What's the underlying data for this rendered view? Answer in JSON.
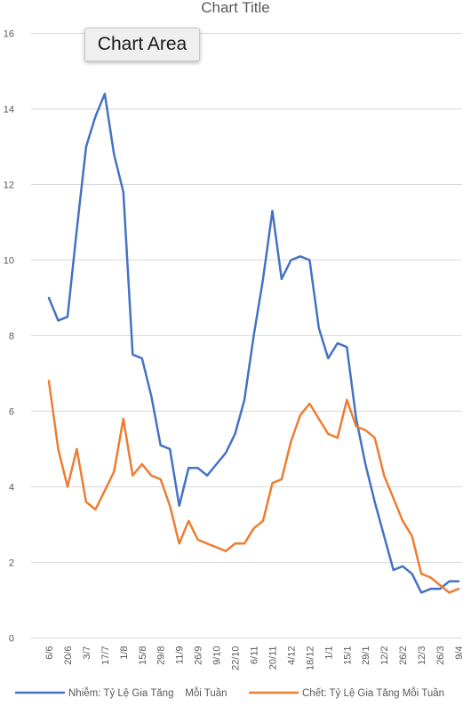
{
  "chart_title": "Chart Title",
  "tooltip": "Chart Area",
  "colors": {
    "infections": "#4472C4",
    "deaths": "#ED7D31",
    "grid": "#d9d9d9",
    "axis_text": "#595959"
  },
  "chart_data": {
    "type": "line",
    "title": "Chart Title",
    "ylim": [
      0,
      16
    ],
    "yticks": [
      0,
      2,
      4,
      6,
      8,
      10,
      12,
      14,
      16
    ],
    "grid": true,
    "legend": "bottom",
    "categories": [
      "6/6",
      "13/6",
      "20/6",
      "27/6",
      "3/7",
      "10/7",
      "17/7",
      "24/7",
      "1/8",
      "8/8",
      "15/8",
      "22/8",
      "29/8",
      "5/9",
      "11/9",
      "19/9",
      "26/9",
      "3/10",
      "9/10",
      "15/10",
      "22/10",
      "30/10",
      "6/11",
      "13/11",
      "20/11",
      "27/11",
      "4/12",
      "11/12",
      "18/12",
      "25/12",
      "1/1",
      "8/1",
      "15/1",
      "22/1",
      "29/1",
      "5/2",
      "12/2",
      "19/2",
      "26/2",
      "5/3",
      "12/3",
      "19/3",
      "26/3",
      "2/4",
      "9/4"
    ],
    "shown_tick_labels": [
      "6/6",
      "20/6",
      "3/7",
      "17/7",
      "1/8",
      "15/8",
      "29/8",
      "11/9",
      "26/9",
      "9/10",
      "22/10",
      "6/11",
      "20/11",
      "4/12",
      "18/12",
      "1/1",
      "15/1",
      "29/1",
      "12/2",
      "26/2",
      "12/3",
      "26/3",
      "9/4"
    ],
    "series": [
      {
        "name": "Nhiễm: Tỷ Lệ Gia Tăng    Mỗi Tuần",
        "values": [
          9.0,
          8.4,
          8.5,
          10.8,
          13.0,
          13.8,
          14.4,
          12.8,
          11.8,
          7.5,
          7.4,
          6.4,
          5.1,
          5.0,
          3.5,
          4.5,
          4.5,
          4.3,
          4.6,
          4.9,
          5.4,
          6.3,
          8.0,
          9.5,
          11.3,
          9.5,
          10.0,
          10.1,
          10.0,
          8.2,
          7.4,
          7.8,
          7.7,
          5.8,
          4.6,
          3.6,
          2.7,
          1.8,
          1.9,
          1.7,
          1.2,
          1.3,
          1.3,
          1.5,
          1.5
        ]
      },
      {
        "name": "Chết: Tỷ Lệ Gia Tăng Mỗi Tuần",
        "values": [
          6.8,
          5.0,
          4.0,
          5.0,
          3.6,
          3.4,
          3.9,
          4.4,
          5.8,
          4.3,
          4.6,
          4.3,
          4.2,
          3.5,
          2.5,
          3.1,
          2.6,
          2.5,
          2.4,
          2.3,
          2.5,
          2.5,
          2.9,
          3.1,
          4.1,
          4.2,
          5.2,
          5.9,
          6.2,
          5.8,
          5.4,
          5.3,
          6.3,
          5.6,
          5.5,
          5.3,
          4.3,
          3.7,
          3.1,
          2.7,
          1.7,
          1.6,
          1.4,
          1.2,
          1.3
        ]
      }
    ]
  }
}
